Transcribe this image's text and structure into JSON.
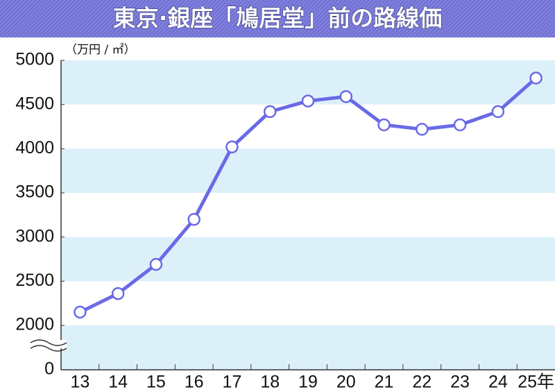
{
  "chart_data": {
    "type": "line",
    "title": "東京·銀座「鳩居堂」前の路線価",
    "unit_label": "（万円 / ㎡）",
    "categories": [
      "13",
      "14",
      "15",
      "16",
      "17",
      "18",
      "19",
      "20",
      "21",
      "22",
      "23",
      "24",
      "25年"
    ],
    "values": [
      2150,
      2360,
      2690,
      3200,
      4020,
      4420,
      4540,
      4590,
      4270,
      4220,
      4270,
      4420,
      4800
    ],
    "color": "#6a6ae6",
    "ylim": [
      2000,
      5000
    ],
    "yticks": [
      2000,
      2500,
      3000,
      3500,
      4000,
      4500,
      5000
    ],
    "y_break_tick": 0,
    "grid_bands": true
  }
}
